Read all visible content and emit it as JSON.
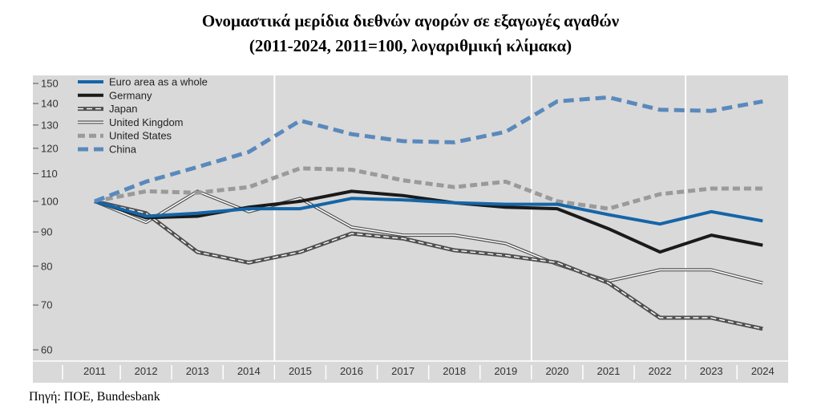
{
  "chart_data": {
    "type": "line",
    "title": "Ονομαστικά μερίδια διεθνών αγορών σε εξαγωγές αγαθών",
    "subtitle": "(2011-2024, 2011=100, λογαριθμική κλίμακα)",
    "source": "Πηγή: ΠΟΕ, Bundesbank",
    "y_scale": "log",
    "ylim": [
      58,
      155
    ],
    "yticks": [
      60,
      70,
      80,
      90,
      100,
      110,
      120,
      130,
      140,
      150
    ],
    "x": [
      "2011",
      "2012",
      "2013",
      "2014",
      "2015",
      "2016",
      "2017",
      "2018",
      "2019",
      "2020",
      "2021",
      "2022",
      "2023",
      "2024"
    ],
    "grid": "vertical lines after 2014, 2019, 2022",
    "legend": "top-left",
    "series": [
      {
        "name": "Euro area as a whole",
        "color": "#1565a8",
        "values": [
          100,
          95,
          96,
          97.5,
          97.5,
          101,
          100.5,
          99.5,
          99,
          99,
          95.5,
          92.5,
          96.5,
          93.5
        ]
      },
      {
        "name": "Germany",
        "color": "#1a1a1a",
        "values": [
          100,
          94.5,
          95,
          98,
          100,
          103.5,
          102,
          99.5,
          98,
          97.5,
          91,
          84,
          89,
          86
        ]
      },
      {
        "name": "Japan",
        "color": "#555555",
        "values": [
          100,
          96,
          84,
          81,
          84,
          89.5,
          88,
          84.5,
          83,
          81,
          75.5,
          67,
          67,
          64.5
        ]
      },
      {
        "name": "United Kingdom",
        "color": "#555555",
        "values": [
          100,
          93,
          103.5,
          96.5,
          101,
          91.5,
          89,
          89,
          86.5,
          80.5,
          76,
          79,
          79,
          75.5
        ]
      },
      {
        "name": "United States",
        "color": "#9a9a9a",
        "values": [
          100,
          103.5,
          103,
          105,
          112,
          111.5,
          107.5,
          105,
          107,
          100,
          97.5,
          102.5,
          104.5,
          104.5
        ]
      },
      {
        "name": "China",
        "color": "#5a89bc",
        "values": [
          100,
          107,
          112.5,
          118.5,
          132,
          126,
          123,
          122.5,
          127,
          141,
          143,
          137,
          136.5,
          141
        ]
      }
    ]
  }
}
